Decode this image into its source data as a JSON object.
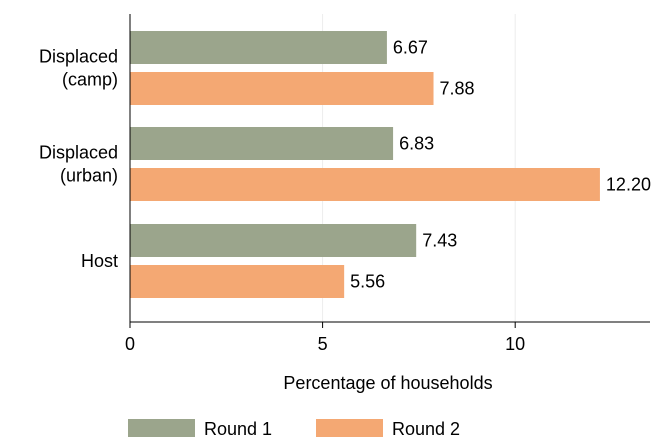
{
  "chart_data": {
    "type": "bar",
    "orientation": "horizontal",
    "categories": [
      "Displaced\n(camp)",
      "Displaced\n(urban)",
      "Host"
    ],
    "series": [
      {
        "name": "Round 1",
        "values": [
          6.67,
          6.83,
          7.43
        ],
        "labels": [
          "6.67",
          "6.83",
          "7.43"
        ]
      },
      {
        "name": "Round 2",
        "values": [
          7.88,
          12.2,
          5.56
        ],
        "labels": [
          "7.88",
          "12.20",
          "5.56"
        ]
      }
    ],
    "xlabel": "Percentage of households",
    "ylabel": "",
    "xlim": [
      0,
      13.5
    ],
    "xticks": [
      0,
      5,
      10
    ],
    "grid": true,
    "legend_position": "bottom"
  },
  "colors": {
    "Round 1": "#9ba58c",
    "Round 2": "#f4a873"
  }
}
